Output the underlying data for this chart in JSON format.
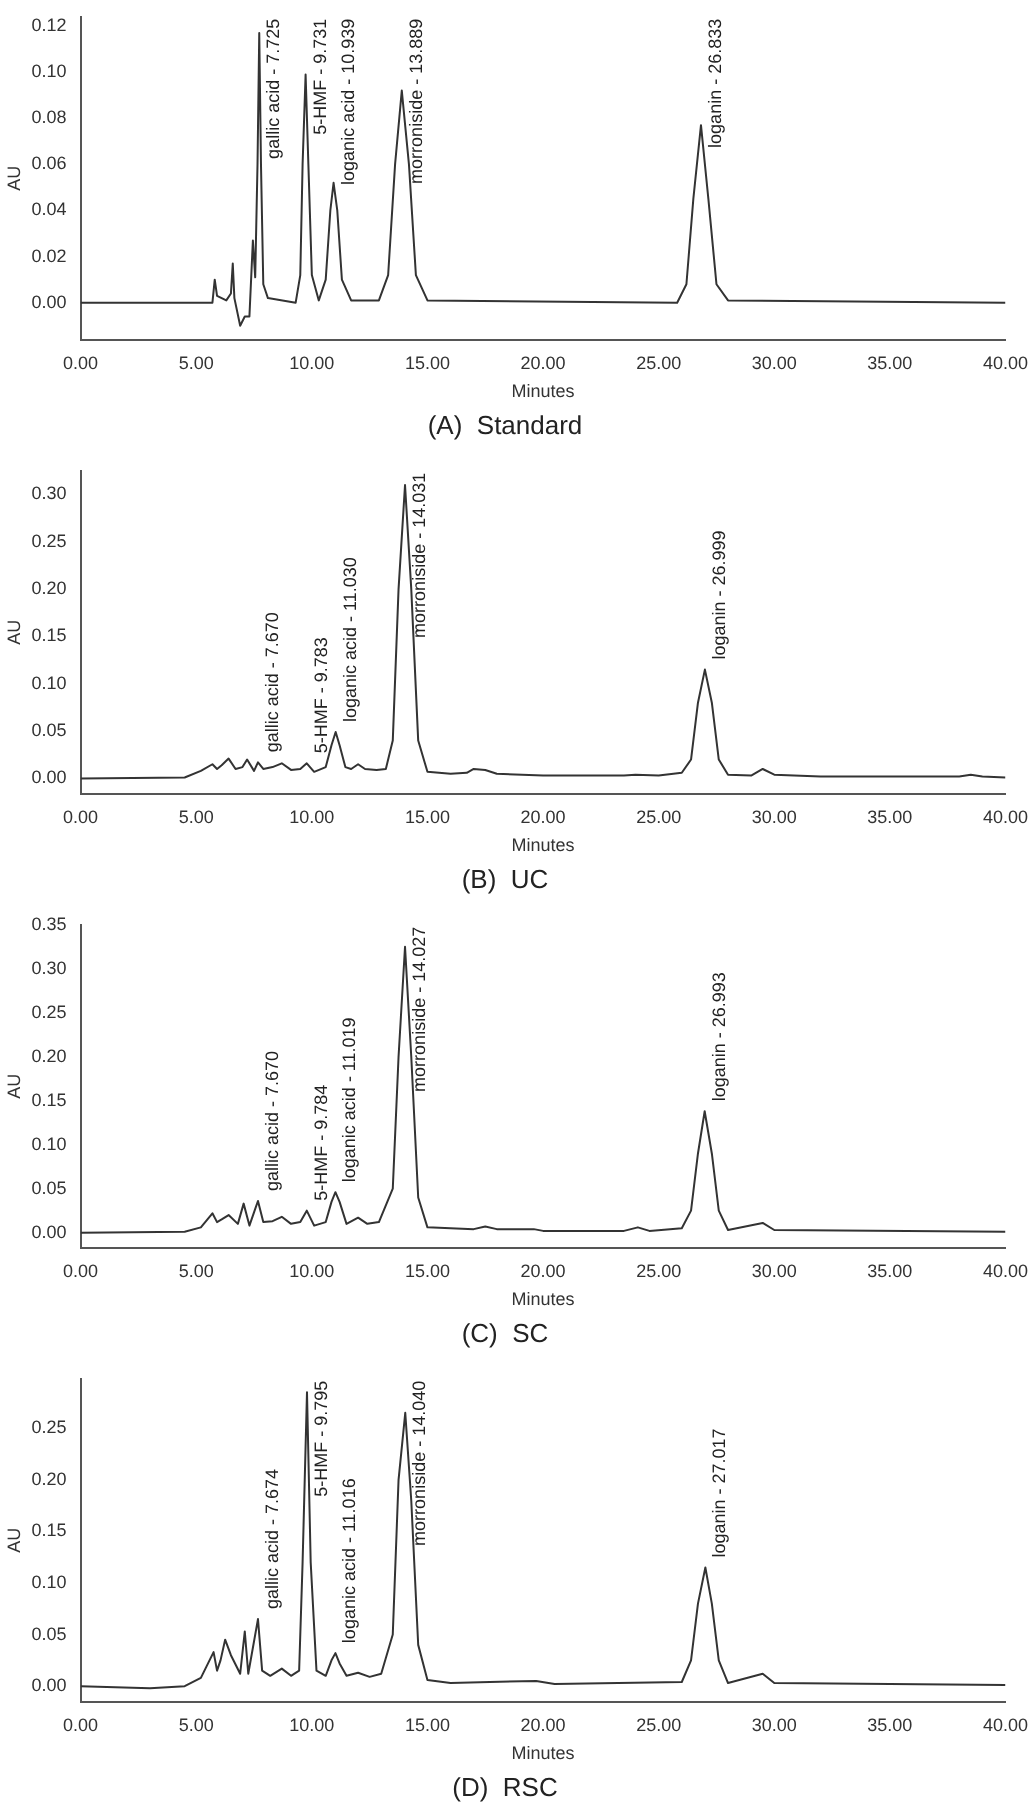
{
  "chart_data": [
    {
      "type": "line",
      "title": "(A)  Standard",
      "xlabel": "Minutes",
      "ylabel": "AU",
      "xlim": [
        0,
        40
      ],
      "xticks": [
        {
          "value": 0,
          "label": "0.00"
        },
        {
          "value": 5,
          "label": "5.00"
        },
        {
          "value": 10,
          "label": "10.00"
        },
        {
          "value": 15,
          "label": "15.00"
        },
        {
          "value": 20,
          "label": "20.00"
        },
        {
          "value": 25,
          "label": "25.00"
        },
        {
          "value": 30,
          "label": "30.00"
        },
        {
          "value": 35,
          "label": "35.00"
        },
        {
          "value": 40,
          "label": "40.00"
        }
      ],
      "ylim": [
        -0.016,
        0.124
      ],
      "yticks": [
        {
          "value": 0,
          "label": "0.00"
        },
        {
          "value": 0.02,
          "label": "0.02"
        },
        {
          "value": 0.04,
          "label": "0.04"
        },
        {
          "value": 0.06,
          "label": "0.06"
        },
        {
          "value": 0.08,
          "label": "0.08"
        },
        {
          "value": 0.1,
          "label": "0.10"
        },
        {
          "value": 0.12,
          "label": "0.12"
        }
      ],
      "series": [
        {
          "color": "#333333",
          "x": [
            0,
            5.7,
            5.8,
            5.9,
            6.3,
            6.5,
            6.58,
            6.65,
            6.9,
            7.1,
            7.3,
            7.45,
            7.55,
            7.65,
            7.725,
            7.8,
            7.9,
            8.1,
            9.3,
            9.5,
            9.6,
            9.73,
            9.85,
            10.0,
            10.3,
            10.6,
            10.8,
            10.94,
            11.1,
            11.3,
            11.7,
            12.9,
            13.3,
            13.6,
            13.89,
            14.2,
            14.5,
            15,
            25.8,
            26.2,
            26.5,
            26.83,
            27.15,
            27.5,
            28,
            40
          ],
          "values": [
            0,
            0,
            0.01,
            0.003,
            0.001,
            0.004,
            0.017,
            0.002,
            -0.01,
            -0.006,
            -0.006,
            0.027,
            0.011,
            0.06,
            0.117,
            0.06,
            0.008,
            0.002,
            0,
            0.012,
            0.06,
            0.099,
            0.06,
            0.012,
            0.001,
            0.01,
            0.04,
            0.052,
            0.04,
            0.01,
            0.001,
            0.001,
            0.012,
            0.06,
            0.092,
            0.06,
            0.012,
            0.001,
            0,
            0.008,
            0.045,
            0.077,
            0.045,
            0.008,
            0.001,
            0
          ]
        }
      ],
      "annotations": [
        {
          "text": "gallic acid - 7.725",
          "x": 7.725,
          "y": 0.117
        },
        {
          "text": "5-HMF - 9.731",
          "x": 9.73,
          "y": 0.099
        },
        {
          "text": "loganic acid - 10.939",
          "x": 10.94,
          "y": 0.052
        },
        {
          "text": "morroniside - 13.889",
          "x": 13.89,
          "y": 0.092
        },
        {
          "text": "loganin - 26.833",
          "x": 26.83,
          "y": 0.077
        }
      ]
    },
    {
      "type": "line",
      "title": "(B)  UC",
      "xlabel": "Minutes",
      "ylabel": "AU",
      "xlim": [
        0,
        40
      ],
      "xticks": [
        {
          "value": 0,
          "label": "0.00"
        },
        {
          "value": 5,
          "label": "5.00"
        },
        {
          "value": 10,
          "label": "10.00"
        },
        {
          "value": 15,
          "label": "15.00"
        },
        {
          "value": 20,
          "label": "20.00"
        },
        {
          "value": 25,
          "label": "25.00"
        },
        {
          "value": 30,
          "label": "30.00"
        },
        {
          "value": 35,
          "label": "35.00"
        },
        {
          "value": 40,
          "label": "40.00"
        }
      ],
      "ylim": [
        -0.016,
        0.325
      ],
      "yticks": [
        {
          "value": 0,
          "label": "0.00"
        },
        {
          "value": 0.05,
          "label": "0.05"
        },
        {
          "value": 0.1,
          "label": "0.10"
        },
        {
          "value": 0.15,
          "label": "0.15"
        },
        {
          "value": 0.2,
          "label": "0.20"
        },
        {
          "value": 0.25,
          "label": "0.25"
        },
        {
          "value": 0.3,
          "label": "0.30"
        }
      ],
      "series": [
        {
          "color": "#333333",
          "x": [
            0,
            4.5,
            5.2,
            5.7,
            5.9,
            6.1,
            6.4,
            6.7,
            7.0,
            7.2,
            7.5,
            7.67,
            7.9,
            8.3,
            8.7,
            9.1,
            9.5,
            9.78,
            10.1,
            10.6,
            10.85,
            11.03,
            11.2,
            11.45,
            11.7,
            12.0,
            12.3,
            12.8,
            13.2,
            13.5,
            13.75,
            14.03,
            14.3,
            14.6,
            15.0,
            16,
            16.7,
            17,
            17.5,
            18,
            20,
            23.5,
            24,
            25,
            26,
            26.4,
            26.7,
            27.0,
            27.3,
            27.6,
            28,
            29,
            29.5,
            30,
            32,
            38,
            38.5,
            39,
            40
          ],
          "values": [
            0,
            0.001,
            0.008,
            0.015,
            0.01,
            0.014,
            0.021,
            0.01,
            0.012,
            0.02,
            0.008,
            0.017,
            0.01,
            0.012,
            0.016,
            0.009,
            0.01,
            0.016,
            0.007,
            0.012,
            0.035,
            0.049,
            0.035,
            0.012,
            0.01,
            0.015,
            0.01,
            0.009,
            0.01,
            0.04,
            0.2,
            0.31,
            0.2,
            0.04,
            0.007,
            0.005,
            0.006,
            0.01,
            0.009,
            0.005,
            0.003,
            0.003,
            0.004,
            0.003,
            0.006,
            0.02,
            0.08,
            0.115,
            0.08,
            0.02,
            0.004,
            0.003,
            0.01,
            0.004,
            0.002,
            0.002,
            0.004,
            0.002,
            0.001
          ]
        }
      ],
      "annotations": [
        {
          "text": "gallic acid - 7.670",
          "x": 7.67,
          "y": 0.017
        },
        {
          "text": "5-HMF - 9.783",
          "x": 9.78,
          "y": 0.016
        },
        {
          "text": "loganic acid - 11.030",
          "x": 11.03,
          "y": 0.049
        },
        {
          "text": "morroniside - 14.031",
          "x": 14.03,
          "y": 0.31
        },
        {
          "text": "loganin - 26.999",
          "x": 27.0,
          "y": 0.115
        }
      ]
    },
    {
      "type": "line",
      "title": "(C)  SC",
      "xlabel": "Minutes",
      "ylabel": "AU",
      "xlim": [
        0,
        40
      ],
      "xticks": [
        {
          "value": 0,
          "label": "0.00"
        },
        {
          "value": 5,
          "label": "5.00"
        },
        {
          "value": 10,
          "label": "10.00"
        },
        {
          "value": 15,
          "label": "15.00"
        },
        {
          "value": 20,
          "label": "20.00"
        },
        {
          "value": 25,
          "label": "25.00"
        },
        {
          "value": 30,
          "label": "30.00"
        },
        {
          "value": 35,
          "label": "35.00"
        },
        {
          "value": 40,
          "label": "40.00"
        }
      ],
      "ylim": [
        -0.017,
        0.35
      ],
      "yticks": [
        {
          "value": 0,
          "label": "0.00"
        },
        {
          "value": 0.05,
          "label": "0.05"
        },
        {
          "value": 0.1,
          "label": "0.10"
        },
        {
          "value": 0.15,
          "label": "0.15"
        },
        {
          "value": 0.2,
          "label": "0.20"
        },
        {
          "value": 0.25,
          "label": "0.25"
        },
        {
          "value": 0.3,
          "label": "0.30"
        },
        {
          "value": 0.35,
          "label": "0.35"
        }
      ],
      "series": [
        {
          "color": "#333333",
          "x": [
            0,
            4.5,
            5.2,
            5.7,
            5.9,
            6.1,
            6.4,
            6.8,
            7.05,
            7.3,
            7.67,
            7.9,
            8.3,
            8.7,
            9.1,
            9.5,
            9.78,
            10.1,
            10.6,
            10.85,
            11.02,
            11.2,
            11.5,
            12.0,
            12.4,
            12.9,
            13.5,
            13.75,
            14.03,
            14.3,
            14.6,
            15,
            17,
            17.5,
            18,
            19.6,
            20,
            23.5,
            24.1,
            24.6,
            26,
            26.4,
            26.7,
            26.99,
            27.3,
            27.6,
            28,
            29.5,
            30,
            40
          ],
          "values": [
            0,
            0.001,
            0.006,
            0.022,
            0.012,
            0.015,
            0.02,
            0.01,
            0.033,
            0.008,
            0.036,
            0.012,
            0.013,
            0.018,
            0.01,
            0.012,
            0.025,
            0.008,
            0.012,
            0.035,
            0.046,
            0.035,
            0.01,
            0.017,
            0.01,
            0.012,
            0.05,
            0.2,
            0.325,
            0.2,
            0.04,
            0.006,
            0.004,
            0.007,
            0.004,
            0.004,
            0.002,
            0.002,
            0.006,
            0.002,
            0.005,
            0.025,
            0.09,
            0.138,
            0.09,
            0.025,
            0.003,
            0.011,
            0.003,
            0.001
          ]
        }
      ],
      "annotations": [
        {
          "text": "gallic acid - 7.670",
          "x": 7.67,
          "y": 0.036
        },
        {
          "text": "5-HMF - 9.784",
          "x": 9.78,
          "y": 0.025
        },
        {
          "text": "loganic acid - 11.019",
          "x": 11.02,
          "y": 0.046
        },
        {
          "text": "morroniside - 14.027",
          "x": 14.03,
          "y": 0.325
        },
        {
          "text": "loganin - 26.993",
          "x": 26.99,
          "y": 0.138
        }
      ]
    },
    {
      "type": "line",
      "title": "(D)  RSC",
      "xlabel": "Minutes",
      "ylabel": "AU",
      "xlim": [
        0,
        40
      ],
      "xticks": [
        {
          "value": 0,
          "label": "0.00"
        },
        {
          "value": 5,
          "label": "5.00"
        },
        {
          "value": 10,
          "label": "10.00"
        },
        {
          "value": 15,
          "label": "15.00"
        },
        {
          "value": 20,
          "label": "20.00"
        },
        {
          "value": 25,
          "label": "25.00"
        },
        {
          "value": 30,
          "label": "30.00"
        },
        {
          "value": 35,
          "label": "35.00"
        },
        {
          "value": 40,
          "label": "40.00"
        }
      ],
      "ylim": [
        -0.015,
        0.298
      ],
      "yticks": [
        {
          "value": 0,
          "label": "0.00"
        },
        {
          "value": 0.05,
          "label": "0.05"
        },
        {
          "value": 0.1,
          "label": "0.10"
        },
        {
          "value": 0.15,
          "label": "0.15"
        },
        {
          "value": 0.2,
          "label": "0.20"
        },
        {
          "value": 0.25,
          "label": "0.25"
        }
      ],
      "series": [
        {
          "color": "#333333",
          "x": [
            0,
            3,
            4.5,
            5.2,
            5.75,
            5.9,
            6.05,
            6.25,
            6.5,
            6.9,
            7.1,
            7.25,
            7.67,
            7.85,
            8.2,
            8.7,
            9.1,
            9.45,
            9.6,
            9.79,
            9.95,
            10.2,
            10.6,
            10.85,
            11.02,
            11.2,
            11.5,
            12.0,
            12.5,
            13,
            13.5,
            13.75,
            14.04,
            14.3,
            14.6,
            15,
            16,
            17.7,
            19.7,
            20.5,
            26,
            26.4,
            26.7,
            27.02,
            27.3,
            27.6,
            28,
            29.5,
            30,
            40
          ],
          "values": [
            0,
            -0.002,
            0,
            0.008,
            0.033,
            0.015,
            0.025,
            0.045,
            0.03,
            0.012,
            0.053,
            0.012,
            0.065,
            0.015,
            0.01,
            0.017,
            0.01,
            0.015,
            0.12,
            0.285,
            0.12,
            0.015,
            0.01,
            0.025,
            0.032,
            0.022,
            0.01,
            0.013,
            0.009,
            0.012,
            0.05,
            0.2,
            0.265,
            0.18,
            0.04,
            0.006,
            0.003,
            0.004,
            0.005,
            0.002,
            0.004,
            0.025,
            0.08,
            0.115,
            0.08,
            0.025,
            0.003,
            0.012,
            0.003,
            0.001
          ]
        }
      ],
      "annotations": [
        {
          "text": "gallic acid - 7.674",
          "x": 7.67,
          "y": 0.065
        },
        {
          "text": "5-HMF - 9.795",
          "x": 9.79,
          "y": 0.285
        },
        {
          "text": "loganic acid - 11.016",
          "x": 11.02,
          "y": 0.032
        },
        {
          "text": "morroniside - 14.040",
          "x": 14.04,
          "y": 0.265
        },
        {
          "text": "loganin - 27.017",
          "x": 27.02,
          "y": 0.115
        }
      ]
    }
  ]
}
